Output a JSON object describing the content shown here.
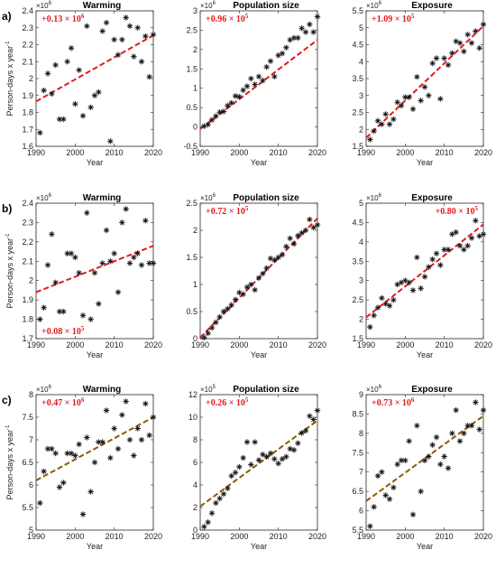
{
  "chart_data": [
    {
      "type": "scatter",
      "row": "a)",
      "title": "Warming",
      "xlabel": "Year",
      "ylabel": "Person-days x year",
      "y_unit_multiplier": "×10",
      "multiplier_exp": "6",
      "annotation": "+0.13 × 10",
      "annotation_exp": "6",
      "annotation_pos": "top-left",
      "trend_color": "#e31a1c",
      "xlim": [
        1990,
        2020
      ],
      "ylim": [
        1.6,
        2.4
      ],
      "xticks": [
        "1990",
        "2000",
        "2010",
        "2020"
      ],
      "yticks": [
        "1.6",
        "1.7",
        "1.8",
        "1.9",
        "2",
        "2.1",
        "2.2",
        "2.3",
        "2.4"
      ],
      "x": [
        1991,
        1992,
        1993,
        1994,
        1995,
        1996,
        1997,
        1998,
        1999,
        2000,
        2001,
        2002,
        2003,
        2004,
        2005,
        2006,
        2007,
        2008,
        2009,
        2010,
        2011,
        2012,
        2013,
        2014,
        2015,
        2016,
        2017,
        2018,
        2019,
        2020
      ],
      "y": [
        1.68,
        1.93,
        2.03,
        1.91,
        2.08,
        1.76,
        1.76,
        2.1,
        2.18,
        1.85,
        2.05,
        1.78,
        2.31,
        1.83,
        1.9,
        1.92,
        2.28,
        2.33,
        1.63,
        2.23,
        2.14,
        2.23,
        2.36,
        2.31,
        2.13,
        2.3,
        2.1,
        2.25,
        2.01,
        2.26
      ],
      "trend": [
        [
          1990,
          1.865
        ],
        [
          2020,
          2.255
        ]
      ]
    },
    {
      "type": "scatter",
      "row": "",
      "title": "Population size",
      "xlabel": "Year",
      "ylabel": "",
      "y_unit_multiplier": "×10",
      "multiplier_exp": "6",
      "annotation": "+0.96 × 10",
      "annotation_exp": "5",
      "annotation_pos": "top-left",
      "trend_color": "#e31a1c",
      "xlim": [
        1990,
        2020
      ],
      "ylim": [
        -0.5,
        3
      ],
      "xticks": [
        "1990",
        "2000",
        "2010",
        "2020"
      ],
      "yticks": [
        "-0.5",
        "0",
        "0.5",
        "1",
        "1.5",
        "2",
        "2.5",
        "3"
      ],
      "x": [
        1991,
        1992,
        1993,
        1994,
        1995,
        1996,
        1997,
        1998,
        1999,
        2000,
        2001,
        2002,
        2003,
        2004,
        2005,
        2006,
        2007,
        2008,
        2009,
        2010,
        2011,
        2012,
        2013,
        2014,
        2015,
        2016,
        2017,
        2018,
        2019,
        2020
      ],
      "y": [
        0.02,
        0.06,
        0.18,
        0.28,
        0.38,
        0.4,
        0.55,
        0.62,
        0.8,
        0.78,
        0.95,
        1.05,
        1.25,
        1.1,
        1.3,
        1.2,
        1.55,
        1.7,
        1.3,
        1.85,
        1.9,
        2.05,
        2.25,
        2.3,
        2.3,
        2.55,
        2.45,
        2.65,
        2.45,
        2.85
      ],
      "trend": [
        [
          1990,
          -0.05
        ],
        [
          2020,
          2.25
        ]
      ]
    },
    {
      "type": "scatter",
      "row": "",
      "title": "Exposure",
      "xlabel": "Year",
      "ylabel": "",
      "y_unit_multiplier": "×10",
      "multiplier_exp": "6",
      "annotation": "+1.09 × 10",
      "annotation_exp": "5",
      "annotation_pos": "top-left",
      "trend_color": "#e31a1c",
      "xlim": [
        1990,
        2020
      ],
      "ylim": [
        1.5,
        5.5
      ],
      "xticks": [
        "1990",
        "2000",
        "2010",
        "2020"
      ],
      "yticks": [
        "1.5",
        "2",
        "2.5",
        "3",
        "3.5",
        "4",
        "4.5",
        "5",
        "5.5"
      ],
      "x": [
        1991,
        1992,
        1993,
        1994,
        1995,
        1996,
        1997,
        1998,
        1999,
        2000,
        2001,
        2002,
        2003,
        2004,
        2005,
        2006,
        2007,
        2008,
        2009,
        2010,
        2011,
        2012,
        2013,
        2014,
        2015,
        2016,
        2017,
        2018,
        2019,
        2020
      ],
      "y": [
        1.7,
        1.95,
        2.25,
        2.15,
        2.45,
        2.15,
        2.3,
        2.8,
        2.7,
        2.95,
        2.95,
        2.6,
        3.55,
        2.85,
        3.25,
        3.0,
        3.95,
        4.1,
        2.9,
        4.1,
        3.9,
        4.25,
        4.6,
        4.55,
        4.3,
        4.8,
        4.55,
        4.9,
        4.4,
        5.1
      ],
      "trend": [
        [
          1990,
          1.75
        ],
        [
          2020,
          5.05
        ]
      ]
    },
    {
      "type": "scatter",
      "row": "b)",
      "title": "Warming",
      "xlabel": "Year",
      "ylabel": "Person-days x year",
      "y_unit_multiplier": "×10",
      "multiplier_exp": "6",
      "annotation": "+0.08 × 10",
      "annotation_exp": "5",
      "annotation_pos": "bottom-left",
      "trend_color": "#e31a1c",
      "xlim": [
        1990,
        2020
      ],
      "ylim": [
        1.7,
        2.4
      ],
      "xticks": [
        "1990",
        "2000",
        "2010",
        "2020"
      ],
      "yticks": [
        "1.7",
        "1.8",
        "1.9",
        "2",
        "2.1",
        "2.2",
        "2.3",
        "2.4"
      ],
      "x": [
        1991,
        1992,
        1993,
        1994,
        1995,
        1996,
        1997,
        1998,
        1999,
        2000,
        2001,
        2002,
        2003,
        2004,
        2005,
        2006,
        2007,
        2008,
        2009,
        2010,
        2011,
        2012,
        2013,
        2014,
        2015,
        2016,
        2017,
        2018,
        2019,
        2020
      ],
      "y": [
        1.8,
        1.86,
        2.08,
        2.24,
        1.99,
        1.84,
        1.84,
        2.14,
        2.14,
        2.12,
        2.04,
        1.82,
        2.35,
        1.8,
        2.04,
        1.88,
        2.09,
        2.26,
        2.1,
        2.14,
        1.94,
        2.3,
        2.37,
        2.09,
        2.12,
        2.14,
        2.08,
        2.31,
        2.09,
        2.09
      ],
      "trend": [
        [
          1990,
          1.94
        ],
        [
          2020,
          2.18
        ]
      ]
    },
    {
      "type": "scatter",
      "row": "",
      "title": "Population size",
      "xlabel": "Year",
      "ylabel": "",
      "y_unit_multiplier": "×10",
      "multiplier_exp": "6",
      "annotation": "+0.72 × 10",
      "annotation_exp": "5",
      "annotation_pos": "top-left",
      "trend_color": "#e31a1c",
      "xlim": [
        1990,
        2020
      ],
      "ylim": [
        0,
        2.5
      ],
      "xticks": [
        "1990",
        "2000",
        "2010",
        "2020"
      ],
      "yticks": [
        "0",
        "0.5",
        "1",
        "1.5",
        "2",
        "2.5"
      ],
      "x": [
        1991,
        1992,
        1993,
        1994,
        1995,
        1996,
        1997,
        1998,
        1999,
        2000,
        2001,
        2002,
        2003,
        2004,
        2005,
        2006,
        2007,
        2008,
        2009,
        2010,
        2011,
        2012,
        2013,
        2014,
        2015,
        2016,
        2017,
        2018,
        2019,
        2020
      ],
      "y": [
        0.02,
        0.1,
        0.2,
        0.3,
        0.4,
        0.5,
        0.55,
        0.62,
        0.72,
        0.85,
        0.82,
        0.95,
        1.0,
        0.9,
        1.12,
        1.2,
        1.3,
        1.48,
        1.45,
        1.5,
        1.55,
        1.7,
        1.85,
        1.75,
        1.9,
        1.95,
        2.0,
        2.2,
        2.05,
        2.1
      ],
      "trend": [
        [
          1990,
          0.02
        ],
        [
          2020,
          2.22
        ]
      ]
    },
    {
      "type": "scatter",
      "row": "",
      "title": "Exposure",
      "xlabel": "Year",
      "ylabel": "",
      "y_unit_multiplier": "×10",
      "multiplier_exp": "6",
      "annotation": "+0.80 × 10",
      "annotation_exp": "5",
      "annotation_pos": "top-right",
      "trend_color": "#e31a1c",
      "xlim": [
        1990,
        2020
      ],
      "ylim": [
        1.5,
        5
      ],
      "xticks": [
        "1990",
        "2000",
        "2010",
        "2020"
      ],
      "yticks": [
        "1.5",
        "2",
        "2.5",
        "3",
        "3.5",
        "4",
        "4.5",
        "5"
      ],
      "x": [
        1991,
        1992,
        1993,
        1994,
        1995,
        1996,
        1997,
        1998,
        1999,
        2000,
        2001,
        2002,
        2003,
        2004,
        2005,
        2006,
        2007,
        2008,
        2009,
        2010,
        2011,
        2012,
        2013,
        2014,
        2015,
        2016,
        2017,
        2018,
        2019,
        2020
      ],
      "y": [
        1.8,
        2.1,
        2.3,
        2.55,
        2.4,
        2.35,
        2.5,
        2.9,
        2.95,
        3.0,
        2.95,
        2.75,
        3.6,
        2.8,
        3.1,
        3.35,
        3.55,
        3.7,
        3.4,
        3.8,
        3.8,
        4.2,
        4.25,
        3.9,
        3.8,
        3.9,
        4.1,
        4.55,
        4.15,
        4.2
      ],
      "trend": [
        [
          1990,
          2.05
        ],
        [
          2020,
          4.45
        ]
      ]
    },
    {
      "type": "scatter",
      "row": "c)",
      "title": "Warming",
      "xlabel": "Year",
      "ylabel": "Person-days x year",
      "y_unit_multiplier": "×10",
      "multiplier_exp": "6",
      "annotation": "+0.47 × 10",
      "annotation_exp": "6",
      "annotation_pos": "top-left",
      "trend_color": "#8b5a00",
      "xlim": [
        1990,
        2020
      ],
      "ylim": [
        5,
        8
      ],
      "xticks": [
        "1990",
        "2000",
        "2010",
        "2020"
      ],
      "yticks": [
        "5",
        "5.5",
        "6",
        "6.5",
        "7",
        "7.5",
        "8"
      ],
      "x": [
        1991,
        1992,
        1993,
        1994,
        1995,
        1996,
        1997,
        1998,
        1999,
        2000,
        2001,
        2002,
        2003,
        2004,
        2005,
        2006,
        2007,
        2008,
        2009,
        2010,
        2011,
        2012,
        2013,
        2014,
        2015,
        2016,
        2017,
        2018,
        2019,
        2020
      ],
      "y": [
        5.6,
        6.3,
        6.8,
        6.8,
        6.7,
        5.95,
        6.05,
        6.7,
        6.7,
        6.65,
        6.9,
        5.35,
        7.05,
        5.85,
        6.5,
        6.95,
        6.95,
        7.65,
        6.6,
        7.25,
        6.8,
        7.55,
        7.85,
        7.0,
        6.65,
        7.25,
        7.0,
        7.8,
        7.1,
        7.5
      ],
      "trend": [
        [
          1990,
          6.1
        ],
        [
          2020,
          7.5
        ]
      ]
    },
    {
      "type": "scatter",
      "row": "",
      "title": "Population size",
      "xlabel": "Year",
      "ylabel": "",
      "y_unit_multiplier": "×10",
      "multiplier_exp": "5",
      "annotation": "+0.26 × 10",
      "annotation_exp": "5",
      "annotation_pos": "top-left",
      "trend_color": "#8b5a00",
      "xlim": [
        1990,
        2020
      ],
      "ylim": [
        0,
        12
      ],
      "xticks": [
        "1990",
        "2000",
        "2010",
        "2020"
      ],
      "yticks": [
        "0",
        "2",
        "4",
        "6",
        "8",
        "10",
        "12"
      ],
      "x": [
        1991,
        1992,
        1993,
        1994,
        1995,
        1996,
        1997,
        1998,
        1999,
        2000,
        2001,
        2002,
        2003,
        2004,
        2005,
        2006,
        2007,
        2008,
        2009,
        2010,
        2011,
        2012,
        2013,
        2014,
        2015,
        2016,
        2017,
        2018,
        2019,
        2020
      ],
      "y": [
        0.3,
        0.7,
        1.5,
        2.4,
        2.8,
        3.2,
        3.7,
        4.8,
        5.1,
        5.6,
        6.4,
        7.8,
        5.8,
        7.8,
        6.2,
        6.7,
        6.5,
        6.8,
        6.3,
        5.9,
        6.3,
        6.5,
        7.2,
        7.1,
        7.7,
        8.6,
        8.8,
        10.1,
        9.8,
        10.6
      ],
      "trend": [
        [
          1990,
          2.1
        ],
        [
          2020,
          9.7
        ]
      ]
    },
    {
      "type": "scatter",
      "row": "",
      "title": "Exposure",
      "xlabel": "Year",
      "ylabel": "",
      "y_unit_multiplier": "×10",
      "multiplier_exp": "6",
      "annotation": "+0.73 × 10",
      "annotation_exp": "6",
      "annotation_pos": "top-left",
      "trend_color": "#8b5a00",
      "xlim": [
        1990,
        2020
      ],
      "ylim": [
        5.5,
        9
      ],
      "xticks": [
        "1990",
        "2000",
        "2010",
        "2020"
      ],
      "yticks": [
        "5.5",
        "6",
        "6.5",
        "7",
        "7.5",
        "8",
        "8.5",
        "9"
      ],
      "x": [
        1991,
        1992,
        1993,
        1994,
        1995,
        1996,
        1997,
        1998,
        1999,
        2000,
        2001,
        2002,
        2003,
        2004,
        2005,
        2006,
        2007,
        2008,
        2009,
        2010,
        2011,
        2012,
        2013,
        2014,
        2015,
        2016,
        2017,
        2018,
        2019,
        2020
      ],
      "y": [
        5.6,
        6.1,
        6.9,
        7.0,
        6.4,
        6.3,
        6.6,
        7.2,
        7.3,
        7.3,
        7.8,
        5.9,
        8.2,
        6.5,
        7.3,
        7.4,
        7.7,
        7.9,
        7.2,
        7.4,
        7.1,
        8.0,
        8.6,
        7.8,
        8.0,
        8.2,
        8.2,
        8.8,
        8.1,
        8.6
      ],
      "trend": [
        [
          1990,
          6.25
        ],
        [
          2020,
          8.45
        ]
      ]
    }
  ]
}
